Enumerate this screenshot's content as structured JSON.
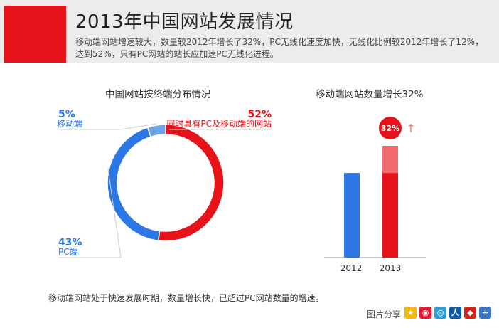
{
  "header": {
    "title": "2013年中国网站发展情况",
    "subtitle": "移动端网站增速较大，数量较2012年增长了32%，PC无线化速度加快，无线化比例较2012年增长了12%，达到52%，只有PC网站的站长应加速PC无线化进程。"
  },
  "colors": {
    "blue": "#2b78e4",
    "light_blue": "#6fa3e8",
    "red": "#e8121a",
    "light_red": "#f56a6f",
    "header_bg": "#ececec"
  },
  "chart_data": [
    {
      "type": "pie",
      "title": "中国网站按终端分布情况",
      "slices": [
        {
          "label": "同时具有PC及移动端的网站",
          "pct_label": "52%",
          "value": 52,
          "color": "#e8121a"
        },
        {
          "label": "PC端",
          "pct_label": "43%",
          "value": 43,
          "color": "#2b78e4"
        },
        {
          "label": "移动端",
          "pct_label": "5%",
          "value": 5,
          "color": "#6fa3e8"
        }
      ]
    },
    {
      "type": "bar",
      "title": "移动端网站数量增长32%",
      "categories": [
        "2012",
        "2013"
      ],
      "values": [
        100,
        132
      ],
      "colors": [
        "#2b78e4",
        "#e8121a"
      ],
      "growth_color": "#f56a6f",
      "annotation": "32%",
      "arrow": "↑"
    }
  ],
  "footnote": "移动端网站处于快速发展时期，数量增长快，已超过PC网站数量的增速。",
  "share": {
    "label": "图片分享",
    "icons": [
      "qzone-icon",
      "weibo-icon",
      "tencent-weibo-icon",
      "renren-icon",
      "tieba-icon",
      "more-icon"
    ]
  }
}
